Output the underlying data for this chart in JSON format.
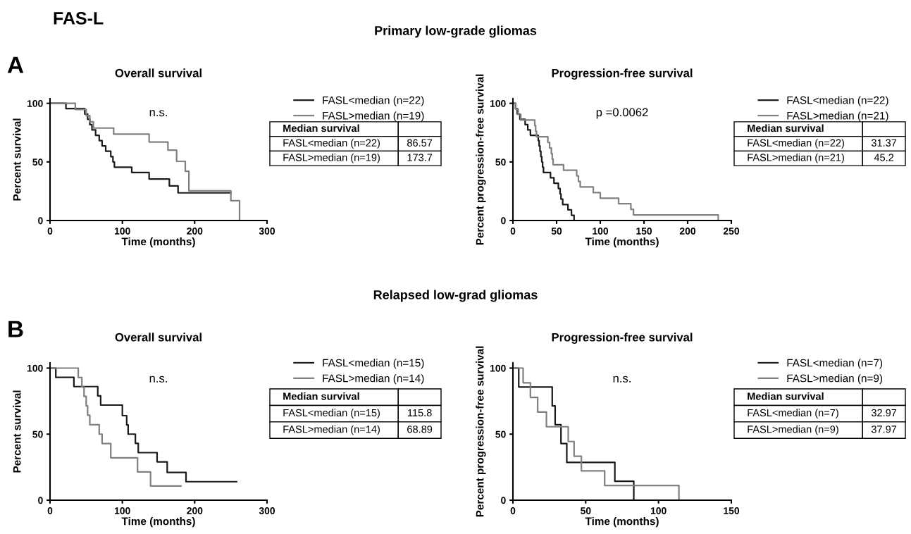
{
  "chart_data": [
    {
      "type": "step",
      "title": "Overall survival",
      "xlabel": "Time (months)",
      "ylabel": "Percent survival",
      "xlim": [
        0,
        300
      ],
      "xticks": [
        0,
        100,
        200,
        300
      ],
      "ylim": [
        0,
        104
      ],
      "yticks": [
        0,
        50,
        100
      ],
      "grid": false,
      "legend": "right",
      "annotations": [
        "n.s.",
        "Median survival",
        "FASL<median (n=22)",
        "86.57",
        "FASL>median (n=19)",
        "173.7",
        "A",
        "Primary low-grade gliomas",
        "FAS-L"
      ],
      "series": [
        {
          "name": "FASL<median (n=22)",
          "color": "#1a1a1a",
          "x": [
            0,
            22,
            48,
            52,
            55,
            58,
            63,
            68,
            72,
            77,
            84,
            87,
            89,
            113,
            137,
            165,
            177,
            250
          ],
          "values": [
            100,
            95.5,
            90.9,
            86.4,
            81.8,
            77.3,
            72.7,
            68.2,
            63.6,
            59.1,
            54.5,
            50,
            45.5,
            40.9,
            35.4,
            29.5,
            23.6,
            23.6
          ]
        },
        {
          "name": "FASL>median (n=19)",
          "color": "#808080",
          "x": [
            0,
            35,
            50,
            55,
            60,
            88,
            137,
            163,
            175,
            187,
            192,
            250,
            262
          ],
          "values": [
            100,
            94.7,
            89.5,
            84.2,
            78.9,
            73.7,
            67,
            60,
            50.5,
            42,
            25.3,
            16.9,
            0
          ]
        }
      ]
    },
    {
      "type": "step",
      "title": "Progression-free survival",
      "xlabel": "Time (months)",
      "ylabel": "Percent progression-free survival",
      "xlim": [
        0,
        250
      ],
      "xticks": [
        0,
        50,
        100,
        150,
        200,
        250
      ],
      "ylim": [
        0,
        104
      ],
      "yticks": [
        0,
        50,
        100
      ],
      "grid": false,
      "legend": "right",
      "annotations": [
        "p =0.0062",
        "Median survival",
        "FASL<median (n=22)",
        "31.37",
        "FASL>median (n=21)",
        "45.2"
      ],
      "series": [
        {
          "name": "FASL<median (n=22)",
          "color": "#1a1a1a",
          "x": [
            0,
            3,
            5,
            8,
            14,
            17,
            20,
            29,
            30,
            31,
            32,
            33,
            34,
            35,
            43,
            47,
            52,
            54,
            55,
            57,
            63,
            67,
            70
          ],
          "values": [
            100,
            95.5,
            90.9,
            86.4,
            81.8,
            77.3,
            72.7,
            68.2,
            63.6,
            59.1,
            54.5,
            50,
            45.5,
            40.9,
            36.4,
            31.8,
            27.3,
            22.7,
            18.2,
            13.6,
            9.1,
            4.5,
            0
          ]
        },
        {
          "name": "FASL>median (n=21)",
          "color": "#808080",
          "x": [
            0,
            3,
            6,
            9,
            25,
            26,
            27,
            40,
            42,
            44,
            45,
            46,
            58,
            73,
            75,
            77,
            92,
            100,
            121,
            135,
            138,
            235
          ],
          "values": [
            100,
            95.2,
            90.5,
            85.7,
            81,
            76.2,
            71.4,
            66.7,
            61.9,
            57.1,
            52.4,
            47.6,
            42.9,
            38.1,
            33.3,
            28.6,
            23.8,
            19,
            14.3,
            9.5,
            4.8,
            0
          ]
        }
      ]
    },
    {
      "type": "step",
      "title": "Overall survival",
      "xlabel": "Time (months)",
      "ylabel": "Percent survival",
      "xlim": [
        0,
        300
      ],
      "xticks": [
        0,
        100,
        200,
        300
      ],
      "ylim": [
        0,
        104
      ],
      "yticks": [
        0,
        50,
        100
      ],
      "grid": false,
      "legend": "right",
      "annotations": [
        "n.s.",
        "Median survival",
        "FASL<median (n=15)",
        "115.8",
        "FASL>median (n=14)",
        "68.89",
        "B",
        "Relapsed low-grad gliomas"
      ],
      "series": [
        {
          "name": "FASL<median (n=15)",
          "color": "#1a1a1a",
          "x": [
            0,
            8,
            33,
            66,
            70,
            100,
            106,
            108,
            118,
            122,
            148,
            162,
            188,
            258
          ],
          "values": [
            100,
            93,
            86,
            79,
            72,
            64,
            57,
            50,
            43,
            36,
            29,
            21,
            14,
            14
          ]
        },
        {
          "name": "FASL>median (n=14)",
          "color": "#808080",
          "x": [
            0,
            39,
            44,
            47,
            50,
            52,
            55,
            68,
            72,
            84,
            121,
            139,
            181
          ],
          "values": [
            100,
            92.9,
            85.7,
            78.6,
            71.4,
            64.3,
            57.1,
            50,
            42.9,
            32.1,
            21.4,
            10.7,
            10.7
          ]
        }
      ]
    },
    {
      "type": "step",
      "title": "Progression-free survival",
      "xlabel": "Time (months)",
      "ylabel": "Percent progression-free survival",
      "xlim": [
        0,
        150
      ],
      "xticks": [
        0,
        50,
        100,
        150
      ],
      "ylim": [
        0,
        104
      ],
      "yticks": [
        0,
        50,
        100
      ],
      "grid": false,
      "legend": "right",
      "annotations": [
        "n.s.",
        "Median survival",
        "FASL<median (n=7)",
        "32.97",
        "FASL>median (n=9)",
        "37.97"
      ],
      "series": [
        {
          "name": "FASL<median (n=7)",
          "color": "#1a1a1a",
          "x": [
            0,
            4,
            27,
            29,
            33,
            37,
            70,
            83
          ],
          "values": [
            100,
            85.7,
            71.4,
            57.1,
            42.9,
            28.6,
            14.3,
            0
          ]
        },
        {
          "name": "FASL>median (n=9)",
          "color": "#808080",
          "x": [
            0,
            7,
            12,
            17,
            23,
            38,
            42,
            47,
            63,
            114
          ],
          "values": [
            100,
            88.9,
            77.8,
            66.7,
            55.6,
            44.4,
            33.3,
            22.2,
            11.1,
            0
          ]
        }
      ]
    }
  ]
}
